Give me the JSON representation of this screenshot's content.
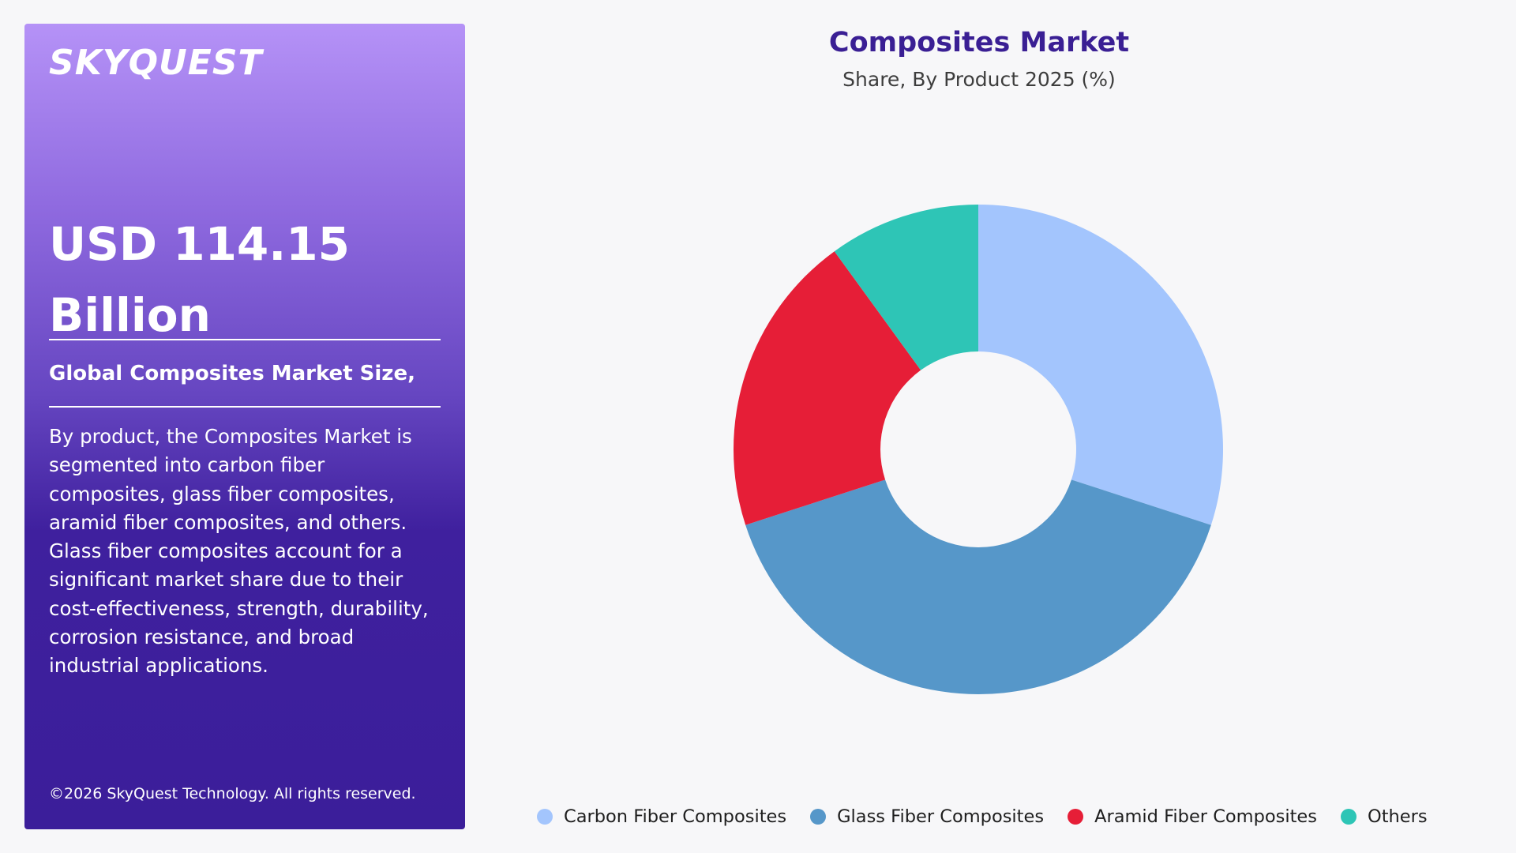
{
  "brand": "SKYQUEST",
  "headline": "USD 114.15 Billion",
  "subheading": "Global Composites Market Size,",
  "description": "By product, the Composites Market is segmented into carbon fiber composites, glass fiber composites, aramid fiber composites, and others. Glass fiber composites account for a significant market share due to their cost-effectiveness, strength, durability, corrosion resistance, and broad industrial applications.",
  "copyright": "©2026 SkyQuest Technology. All rights reserved.",
  "chart_data": {
    "type": "pie",
    "variant": "donut",
    "title": "Composites Market",
    "subtitle": "Share, By Product 2025 (%)",
    "categories": [
      "Carbon Fiber Composites",
      "Glass Fiber Composites",
      "Aramid Fiber Composites",
      "Others"
    ],
    "values": [
      30,
      40,
      20,
      10
    ],
    "colors": [
      "#a3c5fd",
      "#5697c9",
      "#e61e37",
      "#2ec5b6"
    ],
    "legend_position": "bottom"
  }
}
